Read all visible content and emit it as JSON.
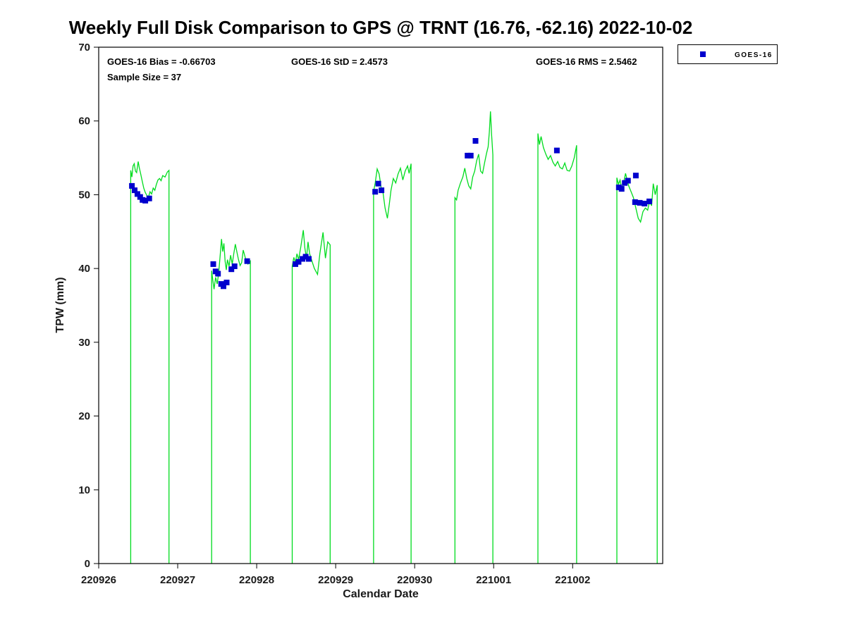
{
  "title": "Weekly Full Disk Comparison to GPS @ TRNT (16.76, -62.16) 2022-10-02",
  "annotations": {
    "bias": "GOES-16 Bias = -0.66703",
    "std": "GOES-16 StD = 2.4573",
    "rms": "GOES-16 RMS = 2.5462",
    "sample": "Sample Size = 37"
  },
  "legend": {
    "items": [
      {
        "label": "GOES-16",
        "marker": "square",
        "color": "#0000CD"
      }
    ]
  },
  "chart_data": {
    "type": "line",
    "title": "Weekly Full Disk Comparison to GPS @ TRNT (16.76, -62.16) 2022-10-02",
    "xlabel": "Calendar Date",
    "ylabel": "TPW (mm)",
    "ylim": [
      0,
      70
    ],
    "yticks": [
      0,
      10,
      20,
      30,
      40,
      50,
      60,
      70
    ],
    "xlim": [
      0,
      7.14
    ],
    "xtick_positions": [
      0,
      1,
      2,
      3,
      4,
      5,
      6
    ],
    "xtick_labels": [
      "220926",
      "220927",
      "220928",
      "220929",
      "220930",
      "221001",
      "221002"
    ],
    "grid": false,
    "legend_position": "top-right-outside",
    "series": [
      {
        "name": "GPS",
        "type": "line",
        "color": "#00DC1E",
        "drops_to_zero_at_segment_edges": true,
        "segments": [
          [
            [
              0.405,
              53.3
            ],
            [
              0.42,
              52.4
            ],
            [
              0.435,
              53.9
            ],
            [
              0.45,
              54.2
            ],
            [
              0.465,
              53.2
            ],
            [
              0.48,
              53.0
            ],
            [
              0.5,
              54.5
            ],
            [
              0.515,
              53.6
            ],
            [
              0.53,
              52.9
            ],
            [
              0.55,
              51.9
            ],
            [
              0.57,
              50.9
            ],
            [
              0.59,
              50.3
            ],
            [
              0.61,
              49.9
            ],
            [
              0.63,
              49.7
            ],
            [
              0.65,
              50.4
            ],
            [
              0.67,
              50.1
            ],
            [
              0.69,
              50.9
            ],
            [
              0.71,
              50.6
            ],
            [
              0.73,
              51.4
            ],
            [
              0.75,
              52.0
            ],
            [
              0.77,
              52.2
            ],
            [
              0.79,
              51.9
            ],
            [
              0.81,
              52.6
            ],
            [
              0.84,
              52.4
            ],
            [
              0.87,
              53.1
            ],
            [
              0.89,
              53.3
            ]
          ],
          [
            [
              1.43,
              39.7
            ],
            [
              1.445,
              38.4
            ],
            [
              1.46,
              37.2
            ],
            [
              1.48,
              38.8
            ],
            [
              1.5,
              37.9
            ],
            [
              1.52,
              39.5
            ],
            [
              1.54,
              42.0
            ],
            [
              1.555,
              44.0
            ],
            [
              1.57,
              42.3
            ],
            [
              1.585,
              43.4
            ],
            [
              1.6,
              41.0
            ],
            [
              1.615,
              39.8
            ],
            [
              1.63,
              41.2
            ],
            [
              1.65,
              40.3
            ],
            [
              1.67,
              41.8
            ],
            [
              1.69,
              40.6
            ],
            [
              1.71,
              42.0
            ],
            [
              1.73,
              43.3
            ],
            [
              1.75,
              42.2
            ],
            [
              1.77,
              41.2
            ],
            [
              1.79,
              40.4
            ],
            [
              1.81,
              40.8
            ],
            [
              1.83,
              42.5
            ],
            [
              1.86,
              41.3
            ],
            [
              1.89,
              40.6
            ],
            [
              1.92,
              41.0
            ]
          ],
          [
            [
              2.45,
              40.3
            ],
            [
              2.47,
              41.5
            ],
            [
              2.49,
              40.8
            ],
            [
              2.51,
              42.0
            ],
            [
              2.53,
              41.2
            ],
            [
              2.56,
              43.0
            ],
            [
              2.59,
              45.2
            ],
            [
              2.61,
              42.8
            ],
            [
              2.63,
              41.4
            ],
            [
              2.65,
              43.6
            ],
            [
              2.67,
              42.0
            ],
            [
              2.7,
              41.0
            ],
            [
              2.73,
              40.0
            ],
            [
              2.77,
              39.2
            ],
            [
              2.8,
              42.0
            ],
            [
              2.84,
              44.9
            ],
            [
              2.87,
              41.4
            ],
            [
              2.9,
              43.6
            ],
            [
              2.93,
              43.2
            ]
          ],
          [
            [
              3.48,
              50.4
            ],
            [
              3.5,
              51.6
            ],
            [
              3.525,
              53.5
            ],
            [
              3.55,
              52.8
            ],
            [
              3.575,
              51.0
            ],
            [
              3.6,
              50.2
            ],
            [
              3.625,
              48.2
            ],
            [
              3.655,
              46.8
            ],
            [
              3.68,
              48.8
            ],
            [
              3.7,
              50.6
            ],
            [
              3.73,
              52.2
            ],
            [
              3.76,
              51.6
            ],
            [
              3.79,
              52.8
            ],
            [
              3.82,
              53.6
            ],
            [
              3.85,
              52.0
            ],
            [
              3.88,
              53.2
            ],
            [
              3.91,
              53.9
            ],
            [
              3.93,
              52.9
            ],
            [
              3.955,
              54.2
            ]
          ],
          [
            [
              4.51,
              49.6
            ],
            [
              4.53,
              49.3
            ],
            [
              4.55,
              50.6
            ],
            [
              4.58,
              51.6
            ],
            [
              4.61,
              52.4
            ],
            [
              4.635,
              53.6
            ],
            [
              4.66,
              52.2
            ],
            [
              4.685,
              51.2
            ],
            [
              4.71,
              50.8
            ],
            [
              4.735,
              52.4
            ],
            [
              4.76,
              53.2
            ],
            [
              4.785,
              54.6
            ],
            [
              4.81,
              55.5
            ],
            [
              4.835,
              53.2
            ],
            [
              4.86,
              52.9
            ],
            [
              4.885,
              54.3
            ],
            [
              4.91,
              55.6
            ],
            [
              4.93,
              56.5
            ],
            [
              4.945,
              58.5
            ],
            [
              4.96,
              61.3
            ],
            [
              4.975,
              58.0
            ],
            [
              4.99,
              55.4
            ]
          ],
          [
            [
              5.56,
              58.3
            ],
            [
              5.58,
              56.8
            ],
            [
              5.6,
              57.9
            ],
            [
              5.63,
              56.4
            ],
            [
              5.66,
              55.5
            ],
            [
              5.69,
              54.8
            ],
            [
              5.72,
              55.3
            ],
            [
              5.75,
              54.4
            ],
            [
              5.78,
              53.9
            ],
            [
              5.81,
              54.5
            ],
            [
              5.84,
              53.7
            ],
            [
              5.87,
              53.5
            ],
            [
              5.9,
              54.3
            ],
            [
              5.93,
              53.3
            ],
            [
              5.96,
              53.2
            ],
            [
              5.99,
              53.9
            ],
            [
              6.02,
              55.0
            ],
            [
              6.05,
              56.7
            ]
          ],
          [
            [
              6.56,
              52.3
            ],
            [
              6.58,
              51.4
            ],
            [
              6.6,
              52.0
            ],
            [
              6.62,
              50.9
            ],
            [
              6.645,
              51.6
            ],
            [
              6.67,
              52.9
            ],
            [
              6.69,
              52.0
            ],
            [
              6.71,
              51.2
            ],
            [
              6.74,
              50.4
            ],
            [
              6.77,
              49.6
            ],
            [
              6.8,
              48.2
            ],
            [
              6.83,
              46.8
            ],
            [
              6.86,
              46.3
            ],
            [
              6.89,
              47.7
            ],
            [
              6.92,
              48.2
            ],
            [
              6.95,
              47.9
            ],
            [
              6.975,
              49.2
            ],
            [
              7.0,
              48.5
            ],
            [
              7.02,
              51.5
            ],
            [
              7.045,
              50.0
            ],
            [
              7.07,
              51.3
            ]
          ]
        ]
      },
      {
        "name": "GOES-16",
        "type": "scatter",
        "marker": "square",
        "color": "#0000CD",
        "points": [
          [
            0.42,
            51.2
          ],
          [
            0.455,
            50.6
          ],
          [
            0.49,
            50.1
          ],
          [
            0.525,
            49.7
          ],
          [
            0.555,
            49.3
          ],
          [
            0.59,
            49.2
          ],
          [
            0.64,
            49.5
          ],
          [
            1.45,
            40.6
          ],
          [
            1.48,
            39.6
          ],
          [
            1.51,
            39.3
          ],
          [
            1.55,
            37.9
          ],
          [
            1.58,
            37.6
          ],
          [
            1.62,
            38.1
          ],
          [
            1.68,
            39.9
          ],
          [
            1.72,
            40.3
          ],
          [
            1.88,
            41.0
          ],
          [
            2.49,
            40.6
          ],
          [
            2.53,
            40.9
          ],
          [
            2.58,
            41.3
          ],
          [
            2.62,
            41.6
          ],
          [
            2.66,
            41.3
          ],
          [
            3.5,
            50.4
          ],
          [
            3.54,
            51.5
          ],
          [
            3.58,
            50.6
          ],
          [
            4.67,
            55.3
          ],
          [
            4.71,
            55.3
          ],
          [
            4.77,
            57.3
          ],
          [
            5.8,
            56.0
          ],
          [
            6.585,
            51.0
          ],
          [
            6.62,
            50.8
          ],
          [
            6.66,
            51.6
          ],
          [
            6.7,
            51.9
          ],
          [
            6.8,
            52.6
          ],
          [
            6.79,
            49.0
          ],
          [
            6.85,
            48.9
          ],
          [
            6.91,
            48.8
          ],
          [
            6.97,
            49.1
          ]
        ]
      }
    ]
  }
}
